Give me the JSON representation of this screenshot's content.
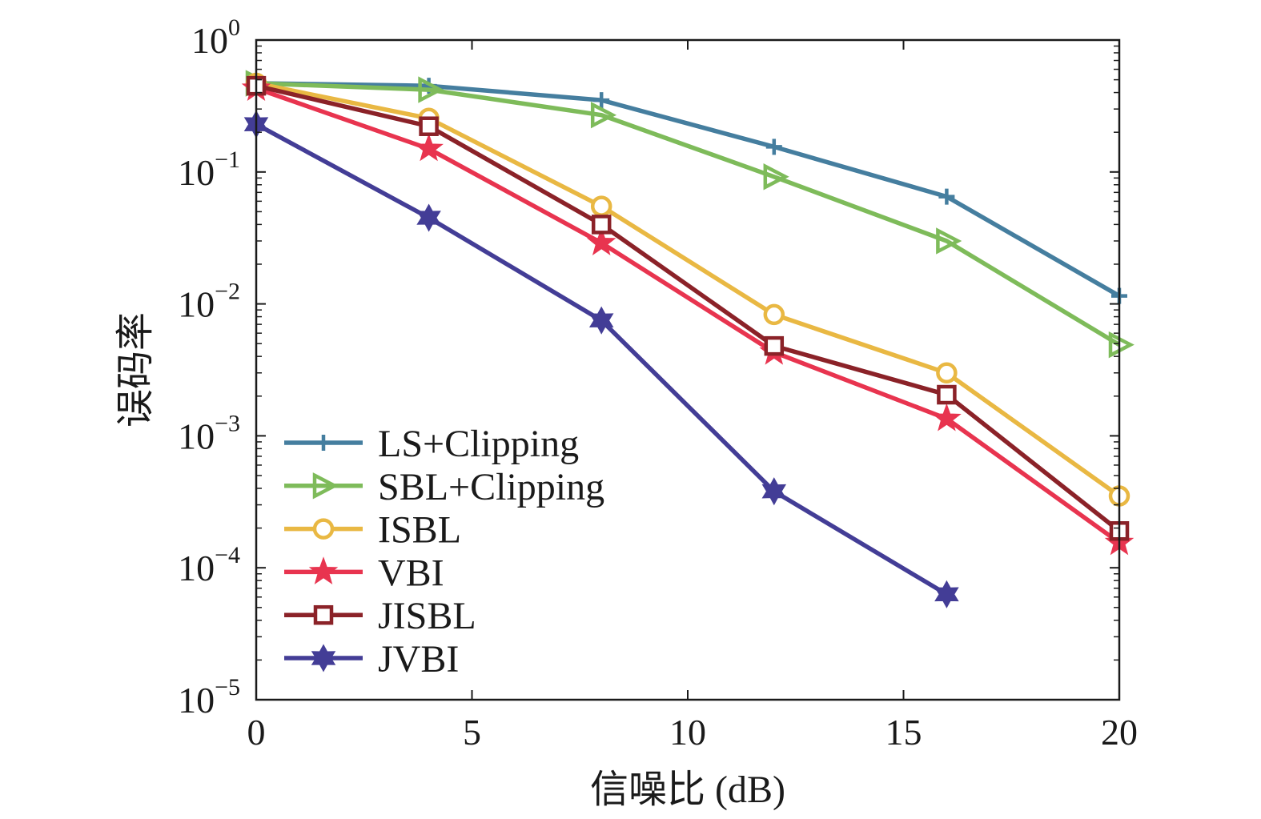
{
  "chart_data": {
    "type": "line",
    "title": "",
    "xlabel": "信噪比 (dB)",
    "ylabel": "误码率",
    "xlim": [
      0,
      20
    ],
    "ylim": [
      1e-05,
      1
    ],
    "yscale": "log",
    "grid": false,
    "legend_position": "lower-left",
    "x_ticks": [
      "0",
      "5",
      "10",
      "15",
      "20"
    ],
    "y_ticks": [
      {
        "base": "10",
        "exp": "0",
        "value": 1
      },
      {
        "base": "10",
        "exp": "−1",
        "value": 0.1
      },
      {
        "base": "10",
        "exp": "−2",
        "value": 0.01
      },
      {
        "base": "10",
        "exp": "−3",
        "value": 0.001
      },
      {
        "base": "10",
        "exp": "−4",
        "value": 0.0001
      },
      {
        "base": "10",
        "exp": "−5",
        "value": 1e-05
      }
    ],
    "series": [
      {
        "name": "LS+Clipping",
        "color": "#457e9f",
        "marker": "plus",
        "x": [
          0,
          4,
          8,
          12,
          16,
          20
        ],
        "y": [
          0.47,
          0.45,
          0.35,
          0.155,
          0.065,
          0.0115
        ]
      },
      {
        "name": "SBL+Clipping",
        "color": "#7ebb5a",
        "marker": "triangle-right",
        "x": [
          0,
          4,
          8,
          12,
          16,
          20
        ],
        "y": [
          0.47,
          0.42,
          0.27,
          0.092,
          0.03,
          0.0049
        ]
      },
      {
        "name": "ISBL",
        "color": "#e9b843",
        "marker": "circle",
        "x": [
          0,
          4,
          8,
          12,
          16,
          20
        ],
        "y": [
          0.47,
          0.255,
          0.055,
          0.0083,
          0.003,
          0.00035
        ]
      },
      {
        "name": "VBI",
        "color": "#e8344f",
        "marker": "star",
        "x": [
          0,
          4,
          8,
          12,
          16,
          20
        ],
        "y": [
          0.43,
          0.15,
          0.029,
          0.0043,
          0.00135,
          0.000155
        ]
      },
      {
        "name": "JISBL",
        "color": "#8b2228",
        "marker": "square",
        "x": [
          0,
          4,
          8,
          12,
          16,
          20
        ],
        "y": [
          0.45,
          0.222,
          0.04,
          0.0048,
          0.00205,
          0.00019
        ]
      },
      {
        "name": "JVBI",
        "color": "#433d96",
        "marker": "hexagram",
        "x": [
          0,
          4,
          8,
          12,
          16
        ],
        "y": [
          0.23,
          0.045,
          0.0075,
          0.00038,
          6.3e-05
        ]
      }
    ]
  }
}
